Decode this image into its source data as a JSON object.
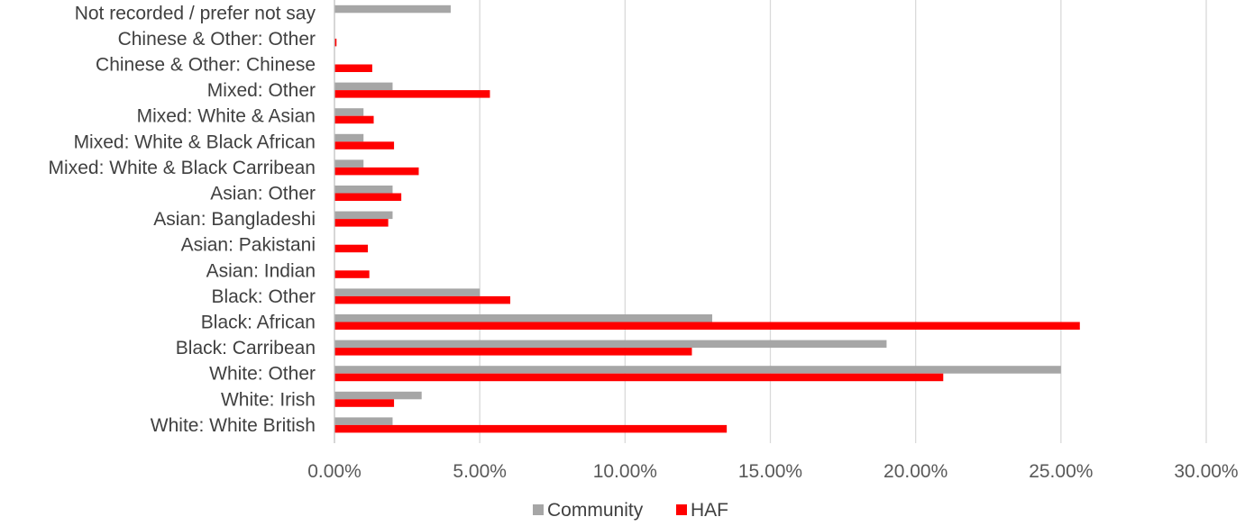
{
  "chart_data": {
    "type": "bar",
    "orientation": "horizontal",
    "categories": [
      "Not recorded / prefer not say",
      "Chinese & Other: Other",
      "Chinese & Other: Chinese",
      "Mixed: Other",
      "Mixed: White & Asian",
      "Mixed: White & Black African",
      "Mixed: White & Black Carribean",
      "Asian: Other",
      "Asian: Bangladeshi",
      "Asian: Pakistani",
      "Asian: Indian",
      "Black: Other",
      "Black: African",
      "Black: Carribean",
      "White: Other",
      "White: Irish",
      "White: White British"
    ],
    "series": [
      {
        "name": "Community",
        "color": "#a6a6a6",
        "values": [
          0.04,
          0,
          0,
          0.02,
          0.01,
          0.01,
          0.01,
          0.02,
          0.02,
          0,
          0,
          0.05,
          0.13,
          0.19,
          0.25,
          0.03,
          0.02
        ]
      },
      {
        "name": "HAF",
        "color": "#ff0000",
        "values": [
          0,
          0.0007,
          0.013,
          0.0535,
          0.0135,
          0.0205,
          0.029,
          0.023,
          0.0185,
          0.0115,
          0.012,
          0.0605,
          0.2565,
          0.123,
          0.2095,
          0.0205,
          0.135
        ]
      }
    ],
    "xlim": [
      0,
      0.3
    ],
    "xticks": [
      0,
      0.05,
      0.1,
      0.15,
      0.2,
      0.25,
      0.3
    ],
    "xtick_labels": [
      "0.00%",
      "5.00%",
      "10.00%",
      "15.00%",
      "20.00%",
      "25.00%",
      "30.00%"
    ],
    "grid": "vertical",
    "legend": "bottom-center",
    "title": "",
    "xlabel": "",
    "ylabel": ""
  }
}
